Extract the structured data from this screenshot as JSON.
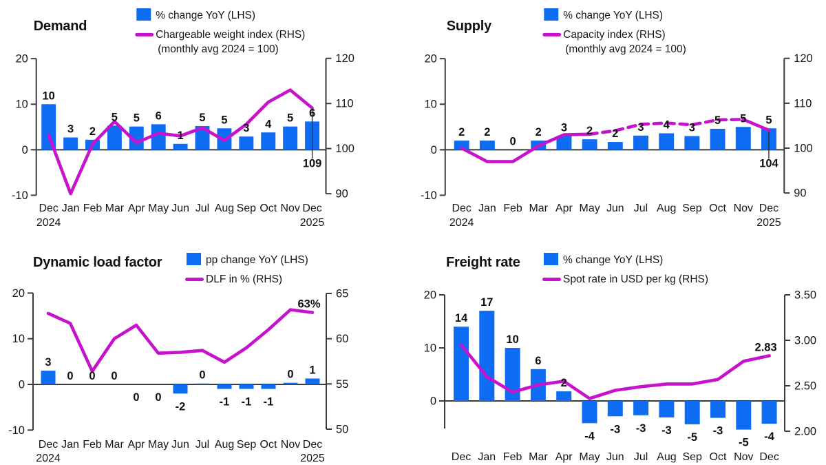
{
  "colors": {
    "bar": "#0d6cf2",
    "line": "#c712cd",
    "axis": "#3b3b3b",
    "text": "#101010",
    "background": "#ffffff"
  },
  "chart_data": [
    {
      "type": "bar+line",
      "title": "Demand",
      "legend": {
        "bar_label": "% change YoY (LHS)",
        "line_label": "Chargeable weight index (RHS)",
        "line_label2": "(monthly avg 2024 = 100)"
      },
      "categories": [
        "Dec",
        "Jan",
        "Feb",
        "Mar",
        "Apr",
        "May",
        "Jun",
        "Jul",
        "Aug",
        "Sep",
        "Oct",
        "Nov",
        "Dec"
      ],
      "x_year_start": "2024",
      "x_year_end": "2025",
      "lhs_ticks": [
        {
          "v": 20,
          "t": "20"
        },
        {
          "v": 10,
          "t": "10"
        },
        {
          "v": 0,
          "t": "0"
        },
        {
          "v": -10,
          "t": "-10"
        }
      ],
      "rhs_ticks": [
        {
          "v": 120,
          "t": "120"
        },
        {
          "v": 110,
          "t": "110"
        },
        {
          "v": 100,
          "t": "100"
        },
        {
          "v": 90,
          "t": "90"
        }
      ],
      "lhs_axis_label": "% change YoY (LHS)",
      "rhs_axis_label": "Chargeable weight index (RHS), monthly avg 2024 = 100",
      "bar_series": {
        "name": "% change YoY (LHS)",
        "values": [
          10,
          3,
          2,
          5,
          5,
          6,
          1,
          5,
          5,
          3,
          4,
          5,
          6
        ],
        "values_visual": [
          10,
          2.7,
          2.2,
          5.3,
          5.1,
          5.6,
          1.3,
          5.2,
          4.7,
          2.9,
          3.8,
          5.1,
          6.2
        ],
        "labels": [
          "10",
          "3",
          "2",
          "5",
          "5",
          "6",
          "1",
          "5",
          "5",
          "3",
          "4",
          "5",
          "6"
        ],
        "label_below": [
          false,
          false,
          false,
          false,
          false,
          false,
          false,
          false,
          false,
          false,
          false,
          false,
          false
        ]
      },
      "line_series": {
        "name": "Chargeable weight index (RHS)",
        "values": [
          103,
          90,
          101,
          106,
          101.3,
          103.4,
          102.8,
          104.6,
          101.8,
          105.4,
          110.3,
          113,
          109
        ],
        "dash_segment": null
      },
      "annotation": {
        "text": "109",
        "kind": "below-axis"
      }
    },
    {
      "type": "bar+line",
      "title": "Supply",
      "legend": {
        "bar_label": "% change YoY (LHS)",
        "line_label": "Capacity index (RHS)",
        "line_label2": "(monthly avg 2024 = 100)"
      },
      "categories": [
        "Dec",
        "Jan",
        "Feb",
        "Mar",
        "Apr",
        "May",
        "Jun",
        "Jul",
        "Aug",
        "Sep",
        "Oct",
        "Nov",
        "Dec"
      ],
      "x_year_start": "2024",
      "x_year_end": "2025",
      "lhs_ticks": [
        {
          "v": 20,
          "t": "20"
        },
        {
          "v": 10,
          "t": "10"
        },
        {
          "v": 0,
          "t": "0"
        },
        {
          "v": -10,
          "t": "-10"
        }
      ],
      "rhs_ticks": [
        {
          "v": 120,
          "t": "120"
        },
        {
          "v": 110,
          "t": "110"
        },
        {
          "v": 100,
          "t": "100"
        },
        {
          "v": 90,
          "t": "90"
        }
      ],
      "lhs_axis_label": "% change YoY (LHS)",
      "rhs_axis_label": "Capacity index (RHS), monthly avg 2024 = 100",
      "bar_series": {
        "name": "% change YoY (LHS)",
        "values": [
          2,
          2,
          0,
          2,
          3,
          2,
          2,
          3,
          4,
          3,
          5,
          5,
          5
        ],
        "values_visual": [
          2,
          2,
          0,
          2,
          3,
          2.3,
          1.7,
          3.1,
          3.6,
          3,
          4.6,
          5,
          4.7
        ],
        "labels": [
          "2",
          "2",
          "0",
          "2",
          "3",
          "2",
          "2",
          "3",
          "4",
          "3",
          "5",
          "5",
          "5"
        ],
        "label_below": [
          false,
          false,
          false,
          false,
          false,
          false,
          false,
          false,
          false,
          false,
          false,
          false,
          false
        ]
      },
      "line_series": {
        "name": "Capacity index (RHS)",
        "values": [
          100,
          97,
          97,
          100.5,
          103,
          103.1,
          103.9,
          105.3,
          105.6,
          105.2,
          106.3,
          106.4,
          104
        ],
        "dash_segment": [
          5,
          11
        ]
      },
      "annotation": {
        "text": "104",
        "kind": "below-axis"
      }
    },
    {
      "type": "bar+line",
      "title": "Dynamic load factor",
      "legend": {
        "bar_label": "pp change YoY (LHS)",
        "line_label": "DLF in % (RHS)",
        "line_label2": null
      },
      "categories": [
        "Dec",
        "Jan",
        "Feb",
        "Mar",
        "Apr",
        "May",
        "Jun",
        "Jul",
        "Aug",
        "Sep",
        "Oct",
        "Nov",
        "Dec"
      ],
      "x_year_start": "2024",
      "x_year_end": "2025",
      "lhs_ticks": [
        {
          "v": 20,
          "t": "20"
        },
        {
          "v": 10,
          "t": "10"
        },
        {
          "v": 0,
          "t": "0"
        },
        {
          "v": -10,
          "t": "-10"
        }
      ],
      "rhs_ticks": [
        {
          "v": 65,
          "t": "65"
        },
        {
          "v": 60,
          "t": "60"
        },
        {
          "v": 55,
          "t": "55"
        },
        {
          "v": 50,
          "t": "50"
        }
      ],
      "lhs_axis_label": "pp change YoY (LHS)",
      "rhs_axis_label": "DLF in % (RHS)",
      "bar_series": {
        "name": "pp change YoY (LHS)",
        "values": [
          3,
          0,
          0,
          0,
          0,
          0,
          -2,
          0,
          -1,
          -1,
          -1,
          0,
          1
        ],
        "values_visual": [
          3,
          0,
          0,
          0,
          0,
          0,
          -2,
          0.2,
          -1,
          -1,
          -1,
          0.35,
          1.3
        ],
        "labels": [
          "3",
          "0",
          "0",
          "0",
          "0",
          "0",
          "-2",
          "0",
          "-1",
          "-1",
          "-1",
          "0",
          "1"
        ],
        "label_below": [
          false,
          false,
          false,
          false,
          true,
          true,
          true,
          false,
          true,
          true,
          true,
          false,
          false
        ]
      },
      "line_series": {
        "name": "DLF in % (RHS)",
        "values": [
          62.8,
          61.7,
          56.4,
          60,
          61.5,
          58.4,
          58.5,
          58.7,
          57.4,
          59,
          61,
          63.2,
          62.9
        ],
        "dash_segment": null
      },
      "annotation": {
        "text": "63%",
        "kind": "float"
      }
    },
    {
      "type": "bar+line",
      "title": "Freight rate",
      "legend": {
        "bar_label": "% change YoY (LHS)",
        "line_label": "Spot rate in USD per kg (RHS)",
        "line_label2": null
      },
      "categories": [
        "Dec",
        "Jan",
        "Feb",
        "Mar",
        "Apr",
        "May",
        "Jun",
        "Jul",
        "Aug",
        "Sep",
        "Oct",
        "Nov",
        "Dec"
      ],
      "x_year_start": null,
      "x_year_end": null,
      "lhs_ticks": [
        {
          "v": 20,
          "t": "20"
        },
        {
          "v": 10,
          "t": "10"
        },
        {
          "v": 0,
          "t": "0"
        }
      ],
      "rhs_ticks": [
        {
          "v": 3.5,
          "t": "3.50"
        },
        {
          "v": 3,
          "t": "3.00"
        },
        {
          "v": 2.5,
          "t": "2.50"
        },
        {
          "v": 2,
          "t": "2.00"
        }
      ],
      "lhs_axis_label": "% change YoY (LHS)",
      "rhs_axis_label": "Spot rate in USD per kg (RHS)",
      "bar_series": {
        "name": "% change YoY (LHS)",
        "values": [
          14,
          17,
          10,
          6,
          2,
          -4,
          -3,
          -3,
          -3,
          -5,
          -3,
          -5,
          -4
        ],
        "values_visual": [
          14,
          17,
          10,
          6,
          1.8,
          -4.2,
          -2.9,
          -2.7,
          -3.1,
          -4.4,
          -3.2,
          -5.4,
          -4.3
        ],
        "labels": [
          "14",
          "17",
          "10",
          "6",
          "2",
          "-4",
          "-3",
          "-3",
          "-3",
          "-5",
          "-3",
          "-5",
          "-4"
        ],
        "label_below": [
          false,
          false,
          false,
          false,
          false,
          true,
          true,
          true,
          true,
          true,
          true,
          true,
          true
        ]
      },
      "line_series": {
        "name": "Spot rate in USD per kg (RHS)",
        "values": [
          2.95,
          2.6,
          2.43,
          2.51,
          2.55,
          2.36,
          2.45,
          2.49,
          2.52,
          2.52,
          2.57,
          2.77,
          2.83
        ],
        "dash_segment": null
      },
      "annotation": {
        "text": "2.83",
        "kind": "float"
      }
    }
  ]
}
